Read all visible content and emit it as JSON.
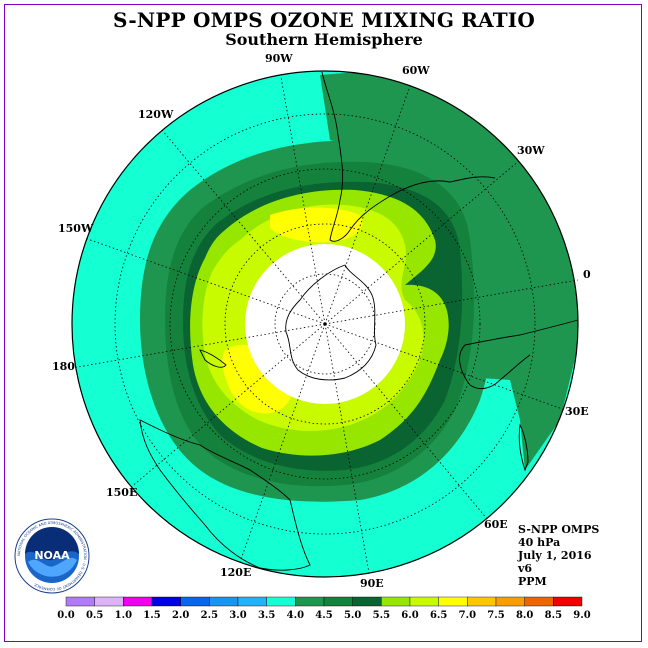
{
  "title": "S-NPP OMPS OZONE MIXING RATIO",
  "subtitle": "Southern Hemisphere",
  "longitude_labels": {
    "l90w": "90W",
    "l60w": "60W",
    "l30w": "30W",
    "l0": "0",
    "l30e": "30E",
    "l60e": "60E",
    "l90e": "90E",
    "l120e": "120E",
    "l150e": "150E",
    "l180": "180",
    "l150w": "150W",
    "l120w": "120W"
  },
  "info": {
    "instrument": "S-NPP OMPS",
    "level": "40 hPa",
    "date": "July 1, 2016",
    "version": "v6",
    "units": "PPM"
  },
  "logo": {
    "text": "NOAA",
    "ring_text": "NATIONAL OCEANIC AND ATMOSPHERIC ADMINISTRATION · U.S. DEPARTMENT OF COMMERCE"
  },
  "colorbar": {
    "ticks": [
      "0.0",
      "0.5",
      "1.0",
      "1.5",
      "2.0",
      "2.5",
      "3.0",
      "3.5",
      "4.0",
      "4.5",
      "5.0",
      "5.5",
      "6.0",
      "6.5",
      "7.0",
      "7.5",
      "8.0",
      "8.5",
      "9.0"
    ],
    "colors": [
      "#b07cf5",
      "#dcb4f5",
      "#f000f0",
      "#0000e6",
      "#0a64f0",
      "#1496f5",
      "#1eb4f5",
      "#14ffd2",
      "#1e9650",
      "#14823c",
      "#0a6432",
      "#96e600",
      "#c8fa00",
      "#ffff00",
      "#fac800",
      "#f5a000",
      "#f06400",
      "#f00000",
      "#82503c"
    ]
  },
  "map": {
    "colors": {
      "outer": "#14ffd2",
      "band_45": "#1e9650",
      "band_50": "#14823c",
      "band_55": "#0a6432",
      "band_60": "#96e600",
      "band_65": "#c8fa00",
      "band_70": "#ffff00",
      "polar_night": "#ffffff",
      "coast": "#000000"
    }
  }
}
